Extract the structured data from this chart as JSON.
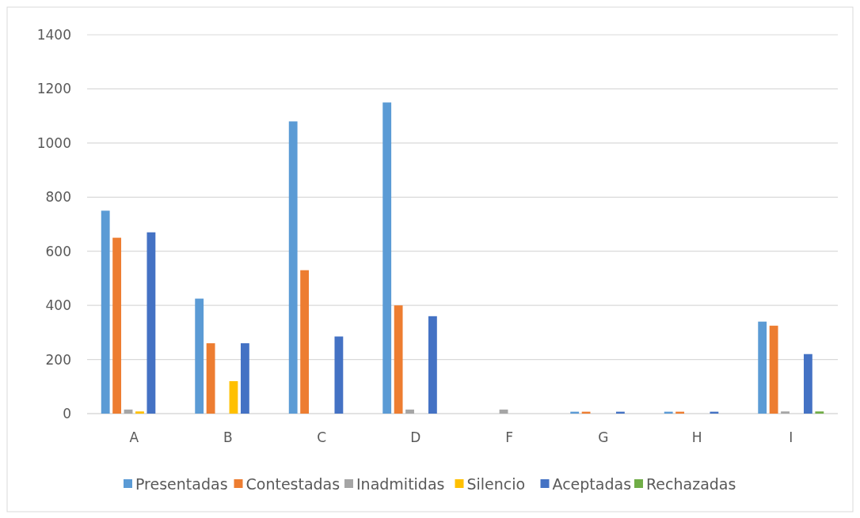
{
  "chart_data": {
    "type": "bar",
    "categories": [
      "A",
      "B",
      "C",
      "D",
      "F",
      "G",
      "H",
      "I"
    ],
    "series": [
      {
        "name": "Presentadas",
        "color": "#5b9bd5",
        "values": [
          750,
          425,
          1080,
          1150,
          null,
          7,
          7,
          340
        ]
      },
      {
        "name": "Contestadas",
        "color": "#ed7d31",
        "values": [
          650,
          260,
          530,
          400,
          null,
          7,
          7,
          325
        ]
      },
      {
        "name": "Inadmitidas",
        "color": "#a5a5a5",
        "values": [
          15,
          null,
          null,
          15,
          15,
          null,
          null,
          8
        ]
      },
      {
        "name": "Silencio",
        "color": "#ffc000",
        "values": [
          8,
          120,
          null,
          null,
          null,
          null,
          null,
          null
        ]
      },
      {
        "name": "Aceptadas",
        "color": "#4472c4",
        "values": [
          670,
          260,
          285,
          360,
          null,
          7,
          7,
          220
        ]
      },
      {
        "name": "Rechazadas",
        "color": "#70ad47",
        "values": [
          null,
          null,
          null,
          null,
          null,
          null,
          null,
          8
        ]
      }
    ],
    "ylim": [
      0,
      1400
    ],
    "yticks": [
      0,
      200,
      400,
      600,
      800,
      1000,
      1200,
      1400
    ],
    "grid": "y",
    "legend": "bottom"
  }
}
